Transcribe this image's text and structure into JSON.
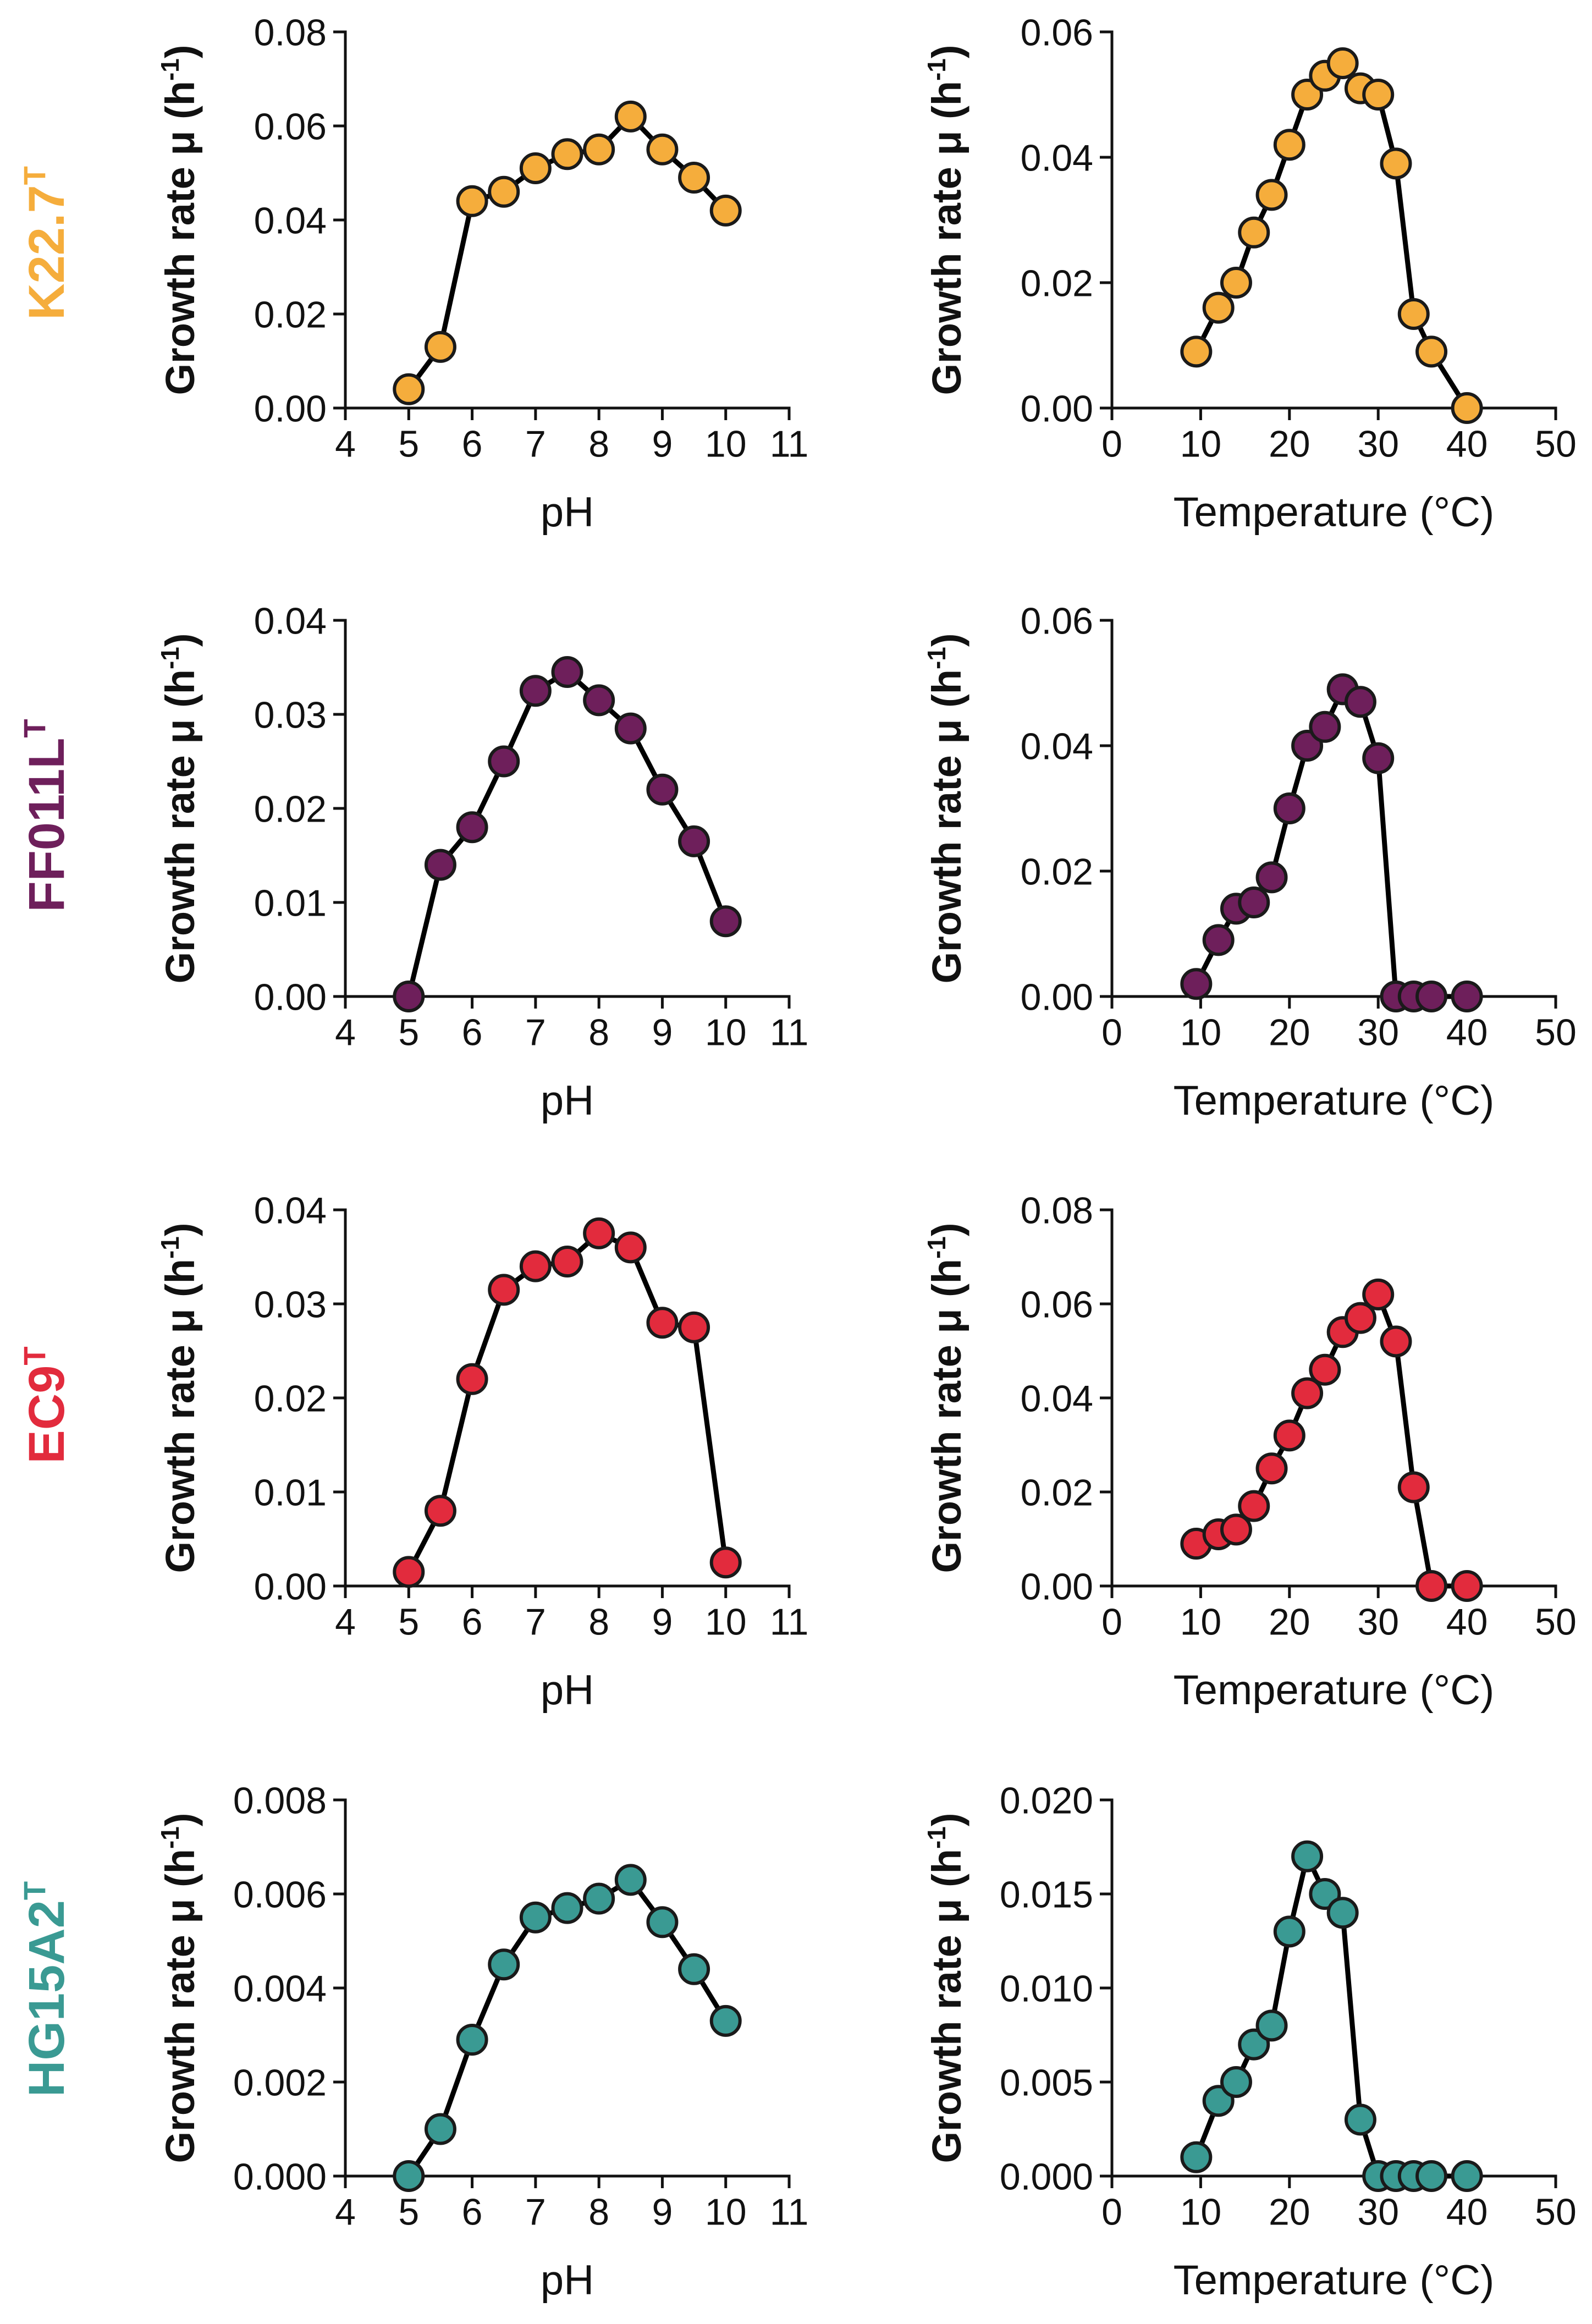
{
  "colors": {
    "axis": "#111111",
    "line": "#000000",
    "marker_stroke": "#1a1a1a"
  },
  "strains": [
    {
      "name": "K22.7",
      "superscript": "T",
      "color": "#f5ad3c"
    },
    {
      "name": "FF011L",
      "superscript": "T",
      "color": "#6e1f5b"
    },
    {
      "name": "EC9",
      "superscript": "T",
      "color": "#e22b3d"
    },
    {
      "name": "HG15A2",
      "superscript": "T",
      "color": "#3a9a93"
    }
  ],
  "chart_data": [
    {
      "type": "line",
      "strain": "K22.7T",
      "panel": "pH",
      "xlabel": "pH",
      "ylabel": "Growth rate μ (h-1)",
      "xlim": [
        4,
        11
      ],
      "xticks": [
        4,
        5,
        6,
        7,
        8,
        9,
        10,
        11
      ],
      "ylim": [
        0,
        0.08
      ],
      "yticks": [
        "0.00",
        "0.02",
        "0.04",
        "0.06",
        "0.08"
      ],
      "x": [
        5,
        5.5,
        6,
        6.5,
        7,
        7.5,
        8,
        8.5,
        9,
        9.5,
        10
      ],
      "y": [
        0.004,
        0.013,
        0.044,
        0.046,
        0.051,
        0.054,
        0.055,
        0.062,
        0.055,
        0.049,
        0.042
      ]
    },
    {
      "type": "line",
      "strain": "K22.7T",
      "panel": "temperature",
      "xlabel": "Temperature (°C)",
      "ylabel": "Growth rate μ (h-1)",
      "xlim": [
        0,
        50
      ],
      "xticks": [
        0,
        10,
        20,
        30,
        40,
        50
      ],
      "ylim": [
        0,
        0.06
      ],
      "yticks": [
        "0.00",
        "0.02",
        "0.04",
        "0.06"
      ],
      "x": [
        9.5,
        12,
        14,
        16,
        18,
        20,
        22,
        24,
        26,
        28,
        30,
        32,
        34,
        36,
        40
      ],
      "y": [
        0.009,
        0.016,
        0.02,
        0.028,
        0.034,
        0.042,
        0.05,
        0.053,
        0.055,
        0.051,
        0.05,
        0.039,
        0.015,
        0.009,
        0.0
      ]
    },
    {
      "type": "line",
      "strain": "FF011LT",
      "panel": "pH",
      "xlabel": "pH",
      "ylabel": "Growth rate μ (h-1)",
      "xlim": [
        4,
        11
      ],
      "xticks": [
        4,
        5,
        6,
        7,
        8,
        9,
        10,
        11
      ],
      "ylim": [
        0,
        0.04
      ],
      "yticks": [
        "0.00",
        "0.01",
        "0.02",
        "0.03",
        "0.04"
      ],
      "x": [
        5,
        5.5,
        6,
        6.5,
        7,
        7.5,
        8,
        8.5,
        9,
        9.5,
        10
      ],
      "y": [
        0.0,
        0.014,
        0.018,
        0.025,
        0.0325,
        0.0345,
        0.0315,
        0.0285,
        0.022,
        0.0165,
        0.008
      ]
    },
    {
      "type": "line",
      "strain": "FF011LT",
      "panel": "temperature",
      "xlabel": "Temperature (°C)",
      "ylabel": "Growth rate μ (h-1)",
      "xlim": [
        0,
        50
      ],
      "xticks": [
        0,
        10,
        20,
        30,
        40,
        50
      ],
      "ylim": [
        0,
        0.06
      ],
      "yticks": [
        "0.00",
        "0.02",
        "0.04",
        "0.06"
      ],
      "x": [
        9.5,
        12,
        14,
        16,
        18,
        20,
        22,
        24,
        26,
        28,
        30,
        32,
        34,
        36,
        40
      ],
      "y": [
        0.002,
        0.009,
        0.014,
        0.015,
        0.019,
        0.03,
        0.04,
        0.043,
        0.049,
        0.047,
        0.038,
        0.0,
        0.0,
        0.0,
        0.0
      ]
    },
    {
      "type": "line",
      "strain": "EC9T",
      "panel": "pH",
      "xlabel": "pH",
      "ylabel": "Growth rate μ (h-1)",
      "xlim": [
        4,
        11
      ],
      "xticks": [
        4,
        5,
        6,
        7,
        8,
        9,
        10,
        11
      ],
      "ylim": [
        0,
        0.04
      ],
      "yticks": [
        "0.00",
        "0.01",
        "0.02",
        "0.03",
        "0.04"
      ],
      "x": [
        5,
        5.5,
        6,
        6.5,
        7,
        7.5,
        8,
        8.5,
        9,
        9.5,
        10
      ],
      "y": [
        0.0015,
        0.008,
        0.022,
        0.0315,
        0.034,
        0.0345,
        0.0375,
        0.036,
        0.028,
        0.0275,
        0.0025
      ]
    },
    {
      "type": "line",
      "strain": "EC9T",
      "panel": "temperature",
      "xlabel": "Temperature (°C)",
      "ylabel": "Growth rate μ (h-1)",
      "xlim": [
        0,
        50
      ],
      "xticks": [
        0,
        10,
        20,
        30,
        40,
        50
      ],
      "ylim": [
        0,
        0.08
      ],
      "yticks": [
        "0.00",
        "0.02",
        "0.04",
        "0.06",
        "0.08"
      ],
      "x": [
        9.5,
        12,
        14,
        16,
        18,
        20,
        22,
        24,
        26,
        28,
        30,
        32,
        34,
        36,
        40
      ],
      "y": [
        0.009,
        0.011,
        0.012,
        0.017,
        0.025,
        0.032,
        0.041,
        0.046,
        0.054,
        0.057,
        0.062,
        0.052,
        0.021,
        0.0,
        0.0
      ]
    },
    {
      "type": "line",
      "strain": "HG15A2T",
      "panel": "pH",
      "xlabel": "pH",
      "ylabel": "Growth rate μ (h-1)",
      "xlim": [
        4,
        11
      ],
      "xticks": [
        4,
        5,
        6,
        7,
        8,
        9,
        10,
        11
      ],
      "ylim": [
        0,
        0.008
      ],
      "yticks": [
        "0.000",
        "0.002",
        "0.004",
        "0.006",
        "0.008"
      ],
      "x": [
        5,
        5.5,
        6,
        6.5,
        7,
        7.5,
        8,
        8.5,
        9,
        9.5,
        10
      ],
      "y": [
        0.0,
        0.001,
        0.0029,
        0.0045,
        0.0055,
        0.0057,
        0.0059,
        0.0063,
        0.0054,
        0.0044,
        0.0033
      ]
    },
    {
      "type": "line",
      "strain": "HG15A2T",
      "panel": "temperature",
      "xlabel": "Temperature (°C)",
      "ylabel": "Growth rate μ (h-1)",
      "xlim": [
        0,
        50
      ],
      "xticks": [
        0,
        10,
        20,
        30,
        40,
        50
      ],
      "ylim": [
        0,
        0.02
      ],
      "yticks": [
        "0.000",
        "0.005",
        "0.010",
        "0.015",
        "0.020"
      ],
      "x": [
        9.5,
        12,
        14,
        16,
        18,
        20,
        22,
        24,
        26,
        28,
        30,
        32,
        34,
        36,
        40
      ],
      "y": [
        0.001,
        0.004,
        0.005,
        0.007,
        0.008,
        0.013,
        0.017,
        0.015,
        0.014,
        0.003,
        0.0,
        0.0,
        0.0,
        0.0,
        0.0
      ]
    }
  ]
}
